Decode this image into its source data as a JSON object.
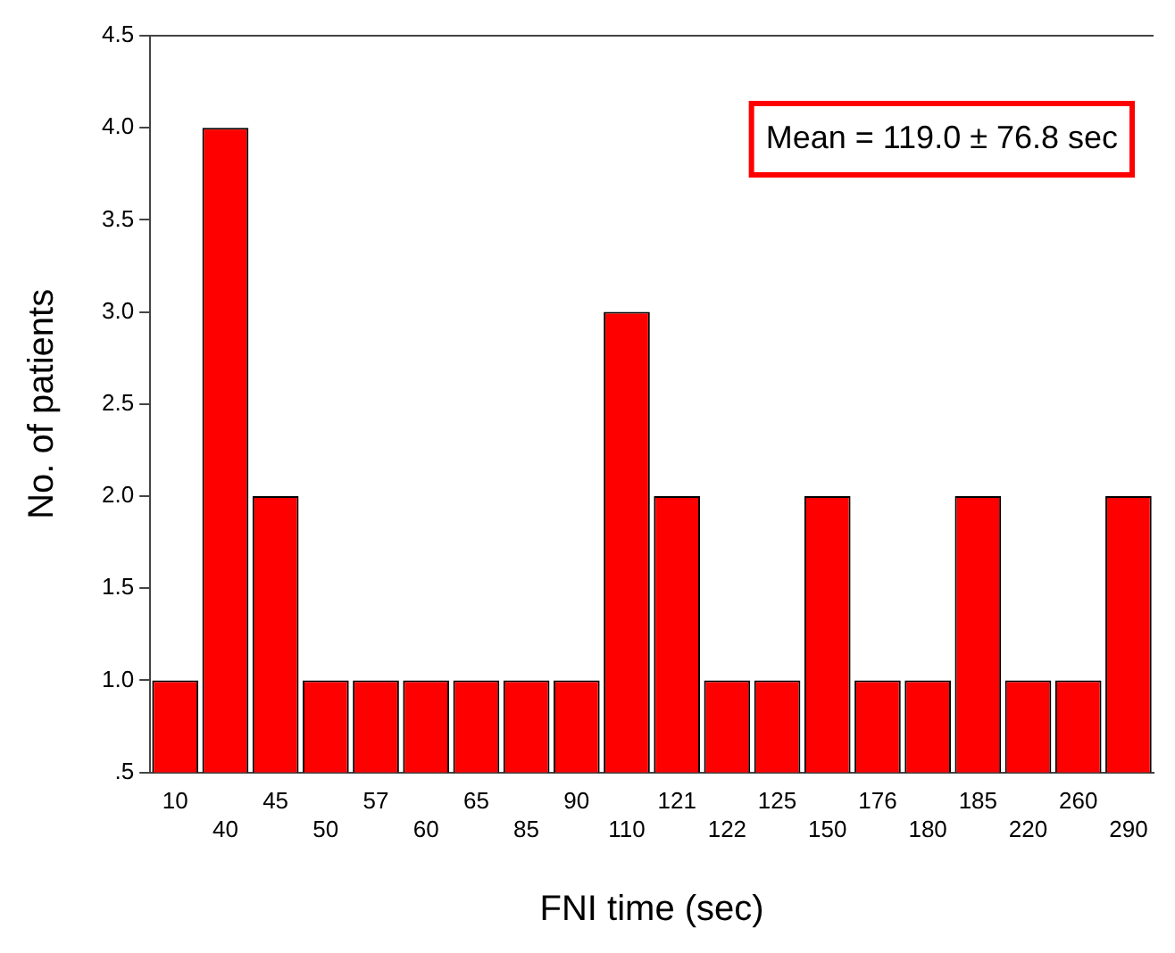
{
  "chart_data": {
    "type": "bar",
    "xlabel": "FNI time (sec)",
    "ylabel": "No. of patients",
    "categories": [
      "10",
      "40",
      "45",
      "50",
      "57",
      "60",
      "65",
      "85",
      "90",
      "110",
      "121",
      "122",
      "125",
      "150",
      "176",
      "180",
      "185",
      "220",
      "260",
      "290"
    ],
    "values": [
      1,
      4,
      2,
      1,
      1,
      1,
      1,
      1,
      1,
      3,
      2,
      1,
      1,
      2,
      1,
      1,
      2,
      1,
      1,
      2
    ],
    "color": "#ff0000",
    "ylim": [
      0.5,
      4.5
    ],
    "yticks": [
      {
        "value": 0.5,
        "label": ".5"
      },
      {
        "value": 1,
        "label": "1.0"
      },
      {
        "value": 1.5,
        "label": "1.5"
      },
      {
        "value": 2,
        "label": "2.0"
      },
      {
        "value": 2.5,
        "label": "2.5"
      },
      {
        "value": 3,
        "label": "3.0"
      },
      {
        "value": 3.5,
        "label": "3.5"
      },
      {
        "value": 4,
        "label": "4.0"
      },
      {
        "value": 4.5,
        "label": "4.5"
      }
    ],
    "grid": false,
    "legend": false,
    "annotations": [
      "Mean = 119.0 ± 76.8 sec"
    ]
  }
}
